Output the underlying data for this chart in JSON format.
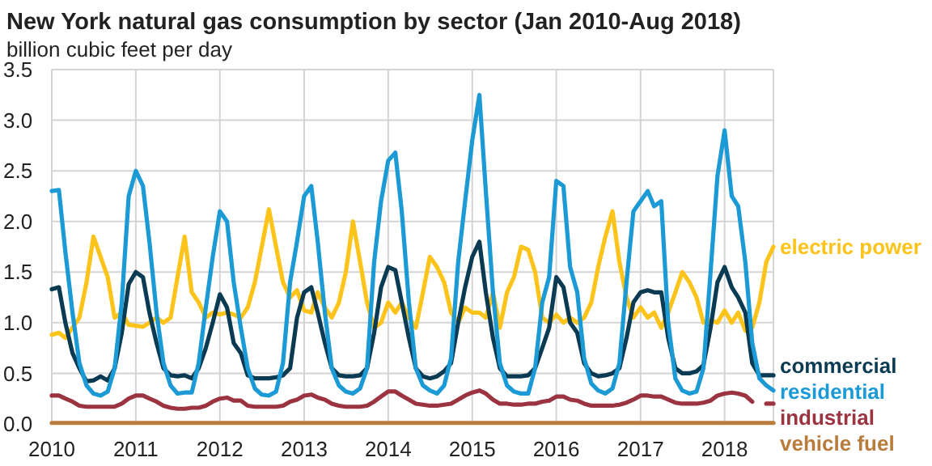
{
  "chart_data": {
    "type": "line",
    "title": "New York natural gas consumption by sector (Jan 2010-Aug 2018)",
    "subtitle": "billion cubic feet per day",
    "x": [
      "2010-01",
      "2010-02",
      "2010-03",
      "2010-04",
      "2010-05",
      "2010-06",
      "2010-07",
      "2010-08",
      "2010-09",
      "2010-10",
      "2010-11",
      "2010-12",
      "2011-01",
      "2011-02",
      "2011-03",
      "2011-04",
      "2011-05",
      "2011-06",
      "2011-07",
      "2011-08",
      "2011-09",
      "2011-10",
      "2011-11",
      "2011-12",
      "2012-01",
      "2012-02",
      "2012-03",
      "2012-04",
      "2012-05",
      "2012-06",
      "2012-07",
      "2012-08",
      "2012-09",
      "2012-10",
      "2012-11",
      "2012-12",
      "2013-01",
      "2013-02",
      "2013-03",
      "2013-04",
      "2013-05",
      "2013-06",
      "2013-07",
      "2013-08",
      "2013-09",
      "2013-10",
      "2013-11",
      "2013-12",
      "2014-01",
      "2014-02",
      "2014-03",
      "2014-04",
      "2014-05",
      "2014-06",
      "2014-07",
      "2014-08",
      "2014-09",
      "2014-10",
      "2014-11",
      "2014-12",
      "2015-01",
      "2015-02",
      "2015-03",
      "2015-04",
      "2015-05",
      "2015-06",
      "2015-07",
      "2015-08",
      "2015-09",
      "2015-10",
      "2015-11",
      "2015-12",
      "2016-01",
      "2016-02",
      "2016-03",
      "2016-04",
      "2016-05",
      "2016-06",
      "2016-07",
      "2016-08",
      "2016-09",
      "2016-10",
      "2016-11",
      "2016-12",
      "2017-01",
      "2017-02",
      "2017-03",
      "2017-04",
      "2017-05",
      "2017-06",
      "2017-07",
      "2017-08",
      "2017-09",
      "2017-10",
      "2017-11",
      "2017-12",
      "2018-01",
      "2018-02",
      "2018-03",
      "2018-04",
      "2018-05",
      "2018-06",
      "2018-07",
      "2018-08"
    ],
    "series": [
      {
        "name": "electric power",
        "color": "#fcc31a",
        "values": [
          0.88,
          0.9,
          0.85,
          0.95,
          1.05,
          1.4,
          1.85,
          1.65,
          1.45,
          1.05,
          1.1,
          0.98,
          0.97,
          0.96,
          1.0,
          1.05,
          1.0,
          1.05,
          1.45,
          1.85,
          1.3,
          1.2,
          1.05,
          1.1,
          1.08,
          1.1,
          1.08,
          1.05,
          1.15,
          1.4,
          1.75,
          2.12,
          1.75,
          1.4,
          1.25,
          1.32,
          1.12,
          1.1,
          1.3,
          1.15,
          1.05,
          1.2,
          1.5,
          2.0,
          1.6,
          1.2,
          0.95,
          1.0,
          1.2,
          1.1,
          1.2,
          1.05,
          0.95,
          1.3,
          1.65,
          1.55,
          1.4,
          1.1,
          1.0,
          1.15,
          1.1,
          1.1,
          1.05,
          1.3,
          0.95,
          1.3,
          1.45,
          1.75,
          1.72,
          1.5,
          1.05,
          1.0,
          1.08,
          1.0,
          1.05,
          1.0,
          1.05,
          1.2,
          1.55,
          1.85,
          2.1,
          1.6,
          1.25,
          1.05,
          1.15,
          1.05,
          1.1,
          0.95,
          1.1,
          1.3,
          1.5,
          1.4,
          1.25,
          1.0,
          1.02,
          1.0,
          1.12,
          1.0,
          1.1,
          0.92,
          0.95,
          1.2,
          1.6,
          1.75
        ]
      },
      {
        "name": "commercial",
        "color": "#0b3b52",
        "values": [
          1.33,
          1.35,
          1.0,
          0.7,
          0.55,
          0.42,
          0.43,
          0.47,
          0.43,
          0.55,
          0.9,
          1.38,
          1.5,
          1.45,
          1.1,
          0.8,
          0.55,
          0.48,
          0.47,
          0.48,
          0.45,
          0.55,
          0.75,
          1.0,
          1.28,
          1.15,
          0.8,
          0.7,
          0.48,
          0.45,
          0.45,
          0.45,
          0.46,
          0.48,
          0.55,
          1.05,
          1.3,
          1.35,
          1.1,
          0.8,
          0.55,
          0.48,
          0.47,
          0.47,
          0.48,
          0.55,
          0.9,
          1.35,
          1.55,
          1.52,
          1.2,
          0.85,
          0.55,
          0.47,
          0.45,
          0.47,
          0.52,
          0.6,
          1.0,
          1.35,
          1.65,
          1.8,
          1.3,
          0.85,
          0.55,
          0.47,
          0.47,
          0.47,
          0.48,
          0.55,
          0.75,
          0.95,
          1.45,
          1.35,
          1.0,
          0.9,
          0.6,
          0.5,
          0.47,
          0.48,
          0.5,
          0.55,
          0.85,
          1.2,
          1.3,
          1.32,
          1.3,
          1.3,
          0.85,
          0.55,
          0.5,
          0.5,
          0.52,
          0.58,
          0.95,
          1.4,
          1.55,
          1.35,
          1.25,
          1.1,
          0.6,
          0.48,
          0.48,
          0.48
        ]
      },
      {
        "name": "residential",
        "color": "#1b9ad6",
        "values": [
          2.3,
          2.31,
          1.7,
          1.1,
          0.6,
          0.38,
          0.3,
          0.28,
          0.32,
          0.55,
          1.2,
          2.25,
          2.5,
          2.35,
          1.8,
          1.1,
          0.6,
          0.38,
          0.3,
          0.31,
          0.31,
          0.6,
          1.15,
          1.65,
          2.1,
          2.0,
          1.4,
          0.95,
          0.55,
          0.35,
          0.29,
          0.28,
          0.32,
          0.6,
          1.4,
          1.8,
          2.25,
          2.35,
          1.8,
          1.1,
          0.55,
          0.38,
          0.32,
          0.3,
          0.35,
          0.55,
          1.6,
          2.2,
          2.6,
          2.68,
          2.1,
          1.2,
          0.55,
          0.38,
          0.33,
          0.3,
          0.38,
          0.65,
          1.6,
          2.2,
          2.8,
          3.25,
          2.3,
          1.3,
          0.6,
          0.38,
          0.32,
          0.3,
          0.3,
          0.55,
          1.2,
          1.45,
          2.4,
          2.35,
          1.55,
          1.3,
          0.65,
          0.4,
          0.33,
          0.3,
          0.35,
          0.6,
          1.4,
          2.1,
          2.2,
          2.3,
          2.15,
          2.2,
          1.0,
          0.45,
          0.33,
          0.3,
          0.32,
          0.55,
          1.5,
          2.45,
          2.9,
          2.25,
          2.15,
          1.6,
          0.8,
          0.45,
          0.38,
          0.33
        ]
      },
      {
        "name": "industrial",
        "color": "#9c3340",
        "values": [
          0.28,
          0.28,
          0.25,
          0.22,
          0.18,
          0.17,
          0.17,
          0.17,
          0.17,
          0.17,
          0.2,
          0.25,
          0.28,
          0.28,
          0.25,
          0.22,
          0.18,
          0.16,
          0.15,
          0.15,
          0.16,
          0.16,
          0.18,
          0.22,
          0.25,
          0.26,
          0.23,
          0.23,
          0.18,
          0.17,
          0.17,
          0.17,
          0.17,
          0.18,
          0.22,
          0.24,
          0.28,
          0.29,
          0.26,
          0.24,
          0.2,
          0.18,
          0.17,
          0.17,
          0.17,
          0.18,
          0.22,
          0.27,
          0.32,
          0.32,
          0.28,
          0.24,
          0.2,
          0.19,
          0.18,
          0.18,
          0.19,
          0.2,
          0.24,
          0.28,
          0.31,
          0.33,
          0.3,
          0.24,
          0.2,
          0.2,
          0.19,
          0.19,
          0.2,
          0.2,
          0.22,
          0.23,
          0.27,
          0.27,
          0.24,
          0.23,
          0.2,
          0.18,
          0.18,
          0.18,
          0.18,
          0.19,
          0.21,
          0.24,
          0.28,
          0.28,
          0.27,
          0.27,
          0.24,
          0.21,
          0.2,
          0.2,
          0.2,
          0.21,
          0.23,
          0.28,
          0.3,
          0.31,
          0.3,
          0.28,
          0.22,
          null,
          0.2,
          0.2
        ]
      },
      {
        "name": "vehicle fuel",
        "color": "#b87c3c",
        "values": [
          0.01,
          0.01,
          0.01,
          0.01,
          0.01,
          0.01,
          0.01,
          0.01,
          0.01,
          0.01,
          0.01,
          0.01,
          0.01,
          0.01,
          0.01,
          0.01,
          0.01,
          0.01,
          0.01,
          0.01,
          0.01,
          0.01,
          0.01,
          0.01,
          0.01,
          0.01,
          0.01,
          0.01,
          0.01,
          0.01,
          0.01,
          0.01,
          0.01,
          0.01,
          0.01,
          0.01,
          0.01,
          0.01,
          0.01,
          0.01,
          0.01,
          0.01,
          0.01,
          0.01,
          0.01,
          0.01,
          0.01,
          0.01,
          0.01,
          0.01,
          0.01,
          0.01,
          0.01,
          0.01,
          0.01,
          0.01,
          0.01,
          0.01,
          0.01,
          0.01,
          0.01,
          0.01,
          0.01,
          0.01,
          0.01,
          0.01,
          0.01,
          0.01,
          0.01,
          0.01,
          0.01,
          0.01,
          0.01,
          0.01,
          0.01,
          0.01,
          0.01,
          0.01,
          0.01,
          0.01,
          0.01,
          0.01,
          0.01,
          0.01,
          0.01,
          0.01,
          0.01,
          0.01,
          0.01,
          0.01,
          0.01,
          0.01,
          0.01,
          0.01,
          0.01,
          0.01,
          0.01,
          0.01,
          0.01,
          0.01,
          0.01,
          0.01,
          0.01,
          0.01
        ]
      }
    ],
    "xlim": [
      "2010-01",
      "2018-08"
    ],
    "xticks": [
      "2010",
      "2011",
      "2012",
      "2013",
      "2014",
      "2015",
      "2016",
      "2017",
      "2018"
    ],
    "ylim": [
      0,
      3.5
    ],
    "yticks": [
      {
        "value": 0,
        "label": "0.0"
      },
      0.5,
      {
        "value": 1,
        "label": "1.0"
      },
      1.5,
      {
        "value": 2,
        "label": "2.0"
      },
      2.5,
      {
        "value": 3,
        "label": "3.0"
      },
      3.5
    ],
    "grid": true,
    "marker": "none",
    "line_style": "solid"
  }
}
